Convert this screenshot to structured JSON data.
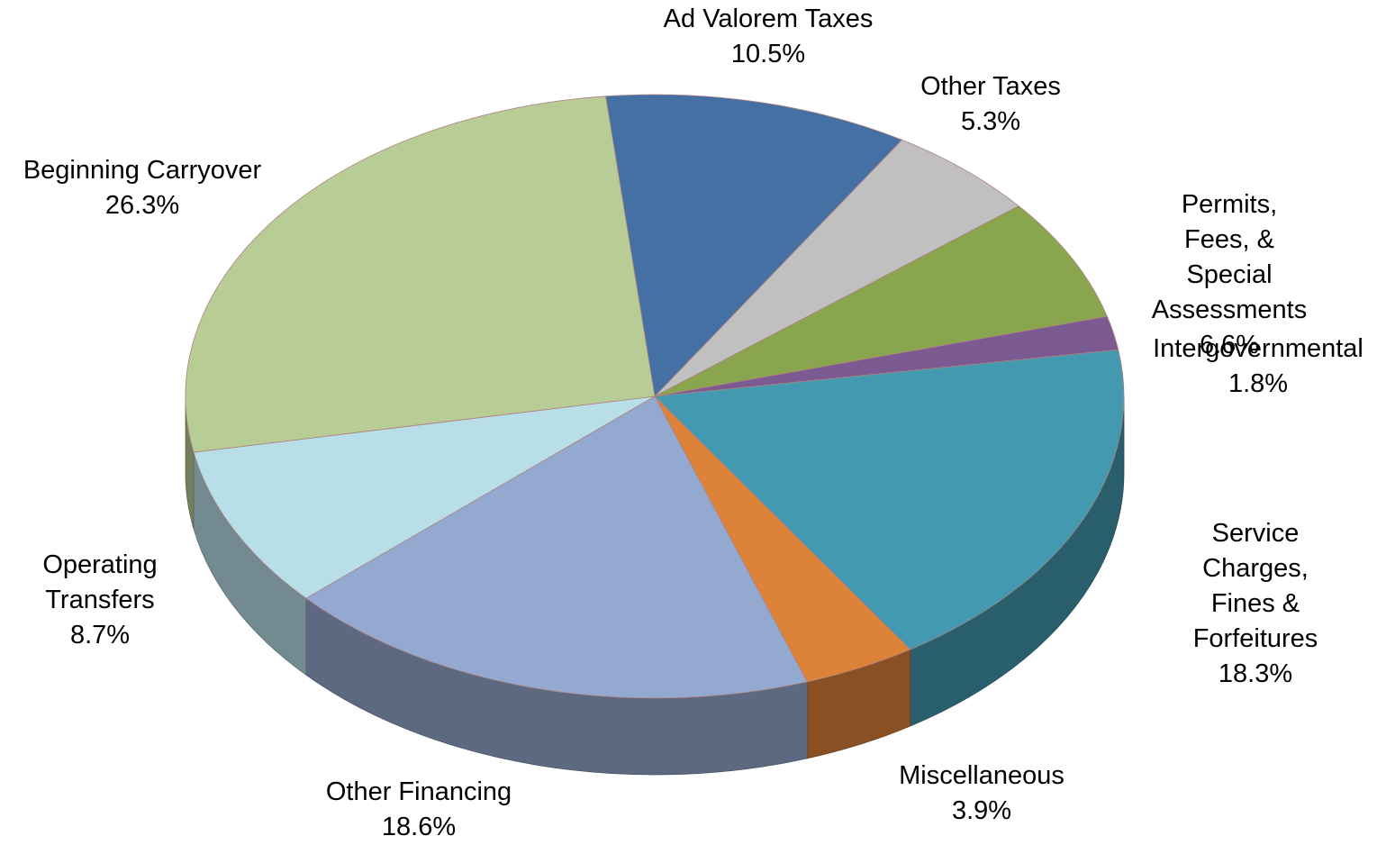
{
  "chart_data": {
    "type": "pie3d",
    "categories": [
      "Ad Valorem Taxes",
      "Other Taxes",
      "Permits, Fees, &\nSpecial Assessments",
      "Intergovernmental",
      "Service Charges,\nFines & Forfeitures",
      "Miscellaneous",
      "Other Financing",
      "Operating\nTransfers",
      "Beginning Carryover"
    ],
    "values": [
      10.5,
      5.3,
      6.6,
      1.8,
      18.3,
      3.9,
      18.6,
      8.7,
      26.3
    ],
    "value_labels": [
      "10.5%",
      "5.3%",
      "6.6%",
      "1.8%",
      "18.3%",
      "3.9%",
      "18.6%",
      "8.7%",
      "26.3%"
    ],
    "colors": [
      "#4470a4",
      "#c0c0c0",
      "#89a54e",
      "#7a5a91",
      "#4299b0",
      "#dd8239",
      "#94a9cf",
      "#b8dfe8",
      "#b8cd95"
    ]
  }
}
